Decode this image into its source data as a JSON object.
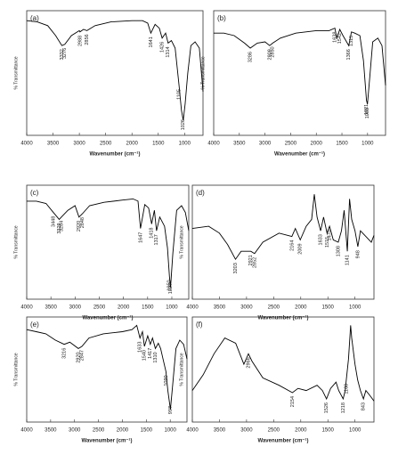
{
  "chart_data": [
    {
      "type": "line",
      "label": "(a)",
      "xlabel": "Wavenumber (cm⁻¹)",
      "ylabel": "% Transmittance",
      "xlim": [
        4000,
        650
      ],
      "ylim": [
        0,
        100
      ],
      "xticks": [
        4000,
        3500,
        3000,
        2500,
        2000,
        1500,
        1000
      ],
      "x": [
        4000,
        3800,
        3600,
        3450,
        3332,
        3276,
        3150,
        3000,
        2988,
        2920,
        2856,
        2700,
        2400,
        2000,
        1800,
        1700,
        1641,
        1560,
        1480,
        1426,
        1360,
        1314,
        1250,
        1180,
        1105,
        1060,
        1026,
        990,
        940,
        880,
        800,
        720,
        650
      ],
      "values": [
        92,
        91,
        88,
        80,
        72,
        73,
        80,
        84,
        83,
        85,
        84,
        88,
        91,
        92,
        92,
        90,
        82,
        89,
        86,
        78,
        82,
        74,
        76,
        70,
        40,
        20,
        12,
        25,
        50,
        72,
        75,
        70,
        35
      ],
      "annotations": [
        3332,
        3276,
        2988,
        2856,
        1641,
        1426,
        1314,
        1105,
        1026
      ],
      "color": "#000000"
    },
    {
      "type": "line",
      "label": "(b)",
      "xlabel": "Wavenumber (cm⁻¹)",
      "ylabel": "% Transmittance",
      "xlim": [
        4000,
        650
      ],
      "ylim": [
        0,
        100
      ],
      "xticks": [
        4000,
        3500,
        3000,
        2500,
        2000,
        1500,
        1000
      ],
      "x": [
        4000,
        3800,
        3600,
        3400,
        3286,
        3150,
        3000,
        2909,
        2850,
        2700,
        2400,
        2000,
        1750,
        1638,
        1600,
        1542,
        1480,
        1366,
        1315,
        1250,
        1150,
        1080,
        1021,
        1003,
        960,
        900,
        800,
        720,
        650
      ],
      "values": [
        82,
        82,
        80,
        74,
        70,
        74,
        75,
        72,
        74,
        78,
        82,
        84,
        84,
        86,
        78,
        85,
        80,
        72,
        83,
        82,
        80,
        60,
        28,
        25,
        45,
        75,
        78,
        72,
        40
      ],
      "annotations": [
        3286,
        2909,
        2850,
        1638,
        1542,
        1366,
        1315,
        1021,
        1003
      ],
      "color": "#000000"
    },
    {
      "type": "line",
      "label": "(c)",
      "xlabel": "Wavenumber (cm⁻¹)",
      "ylabel": "% Transmittance",
      "xlim": [
        4000,
        650
      ],
      "ylim": [
        0,
        100
      ],
      "xticks": [
        4000,
        3500,
        3000,
        2500,
        2000,
        1500,
        1000
      ],
      "x": [
        4000,
        3800,
        3600,
        3448,
        3329,
        3284,
        3150,
        3000,
        2920,
        2848,
        2700,
        2400,
        2000,
        1800,
        1700,
        1647,
        1560,
        1480,
        1418,
        1360,
        1317,
        1250,
        1150,
        1090,
        1050,
        1027,
        980,
        900,
        800,
        720,
        650
      ],
      "values": [
        86,
        86,
        84,
        76,
        70,
        72,
        78,
        82,
        72,
        75,
        82,
        85,
        87,
        88,
        86,
        62,
        83,
        80,
        66,
        78,
        60,
        72,
        64,
        45,
        20,
        10,
        40,
        78,
        82,
        76,
        60
      ],
      "annotations": [
        3448,
        3329,
        3284,
        2920,
        2848,
        1647,
        1418,
        1317,
        1050,
        1027
      ],
      "color": "#000000"
    },
    {
      "type": "line",
      "label": "(d)",
      "xlabel": "Wavenumber (cm⁻¹)",
      "ylabel": "% Transmittance",
      "xlim": [
        4000,
        650
      ],
      "ylim": [
        0,
        100
      ],
      "xticks": [
        4000,
        3500,
        3000,
        2500,
        2000,
        1500,
        1000
      ],
      "x": [
        4000,
        3700,
        3500,
        3350,
        3203,
        3100,
        2921,
        2852,
        2700,
        2400,
        2164,
        2100,
        2009,
        1900,
        1800,
        1750,
        1700,
        1633,
        1580,
        1515,
        1470,
        1400,
        1308,
        1250,
        1200,
        1141,
        1100,
        1060,
        1000,
        948,
        900,
        800,
        700,
        650
      ],
      "values": [
        62,
        64,
        58,
        48,
        35,
        42,
        42,
        40,
        50,
        58,
        55,
        62,
        52,
        64,
        70,
        92,
        72,
        60,
        72,
        58,
        64,
        52,
        50,
        60,
        78,
        42,
        88,
        70,
        60,
        46,
        60,
        55,
        50,
        56
      ],
      "annotations": [
        3203,
        2921,
        2852,
        2164,
        2009,
        1633,
        1515,
        1470,
        1308,
        1141,
        948
      ],
      "color": "#000000"
    },
    {
      "type": "line",
      "label": "(e)",
      "xlabel": "Wavenumber (cm⁻¹)",
      "ylabel": "% Transmittance",
      "xlim": [
        4000,
        650
      ],
      "ylim": [
        0,
        100
      ],
      "xticks": [
        4000,
        3500,
        3000,
        2500,
        2000,
        1500,
        1000
      ],
      "x": [
        4000,
        3800,
        3600,
        3400,
        3216,
        3100,
        2920,
        2847,
        2700,
        2400,
        2000,
        1800,
        1700,
        1633,
        1580,
        1540,
        1470,
        1417,
        1370,
        1310,
        1250,
        1200,
        1150,
        1090,
        1050,
        997,
        950,
        880,
        800,
        720,
        650
      ],
      "values": [
        88,
        86,
        84,
        78,
        74,
        76,
        70,
        72,
        80,
        84,
        86,
        88,
        92,
        80,
        86,
        72,
        82,
        74,
        80,
        70,
        75,
        70,
        60,
        48,
        30,
        12,
        35,
        70,
        78,
        74,
        60
      ],
      "annotations": [
        3216,
        2920,
        2847,
        1633,
        1540,
        1417,
        1310,
        1090,
        997
      ],
      "color": "#000000"
    },
    {
      "type": "line",
      "label": "(f)",
      "xlabel": "Wavenumber (cm⁻¹)",
      "ylabel": "% Transmittance",
      "xlim": [
        4000,
        650
      ],
      "ylim": [
        0,
        100
      ],
      "xticks": [
        4000,
        3500,
        3000,
        2500,
        2000,
        1500,
        1000
      ],
      "x": [
        4000,
        3800,
        3600,
        3400,
        3200,
        3050,
        2966,
        2900,
        2700,
        2400,
        2154,
        2050,
        1900,
        1700,
        1600,
        1526,
        1450,
        1350,
        1300,
        1218,
        1180,
        1160,
        1120,
        1080,
        1060,
        1000,
        950,
        900,
        843,
        800,
        720,
        650
      ],
      "values": [
        30,
        45,
        65,
        80,
        75,
        55,
        65,
        58,
        42,
        35,
        28,
        32,
        30,
        35,
        30,
        22,
        32,
        38,
        30,
        22,
        30,
        40,
        60,
        92,
        80,
        55,
        40,
        30,
        22,
        30,
        25,
        20
      ],
      "annotations": [
        2966,
        2154,
        1526,
        1218,
        1160,
        843
      ],
      "color": "#000000"
    }
  ]
}
